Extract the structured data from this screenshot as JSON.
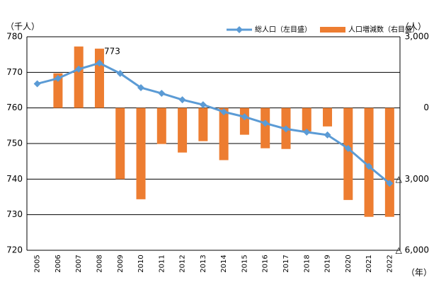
{
  "chart_data": {
    "type": "bar-line",
    "y_label": "（千人）",
    "y2_label": "（人）",
    "x_label": "（年）",
    "categories": [
      "2005",
      "2006",
      "2007",
      "2008",
      "2009",
      "2010",
      "2011",
      "2012",
      "2013",
      "2014",
      "2015",
      "2016",
      "2017",
      "2018",
      "2019",
      "2020",
      "2021",
      "2022"
    ],
    "series": [
      {
        "name": "総人口（左目盛）",
        "type": "line",
        "color": "#5b9bd5",
        "axis": "y",
        "values": [
          766.8,
          768.3,
          770.9,
          772.6,
          769.7,
          765.7,
          764.1,
          762.3,
          760.9,
          758.9,
          757.5,
          755.7,
          754.1,
          753.2,
          752.4,
          748.6,
          743.6,
          738.8
        ],
        "value_labels": [
          null,
          null,
          null,
          "773",
          null,
          null,
          null,
          null,
          null,
          null,
          null,
          null,
          null,
          null,
          null,
          null,
          null,
          null
        ]
      },
      {
        "name": "人口増減数（右目盛）",
        "type": "bar",
        "color": "#ed7d31",
        "axis": "y2",
        "values": [
          null,
          1460,
          2590,
          2500,
          -3000,
          -3850,
          -1520,
          -1880,
          -1400,
          -2200,
          -1130,
          -1700,
          -1730,
          -990,
          -780,
          -3880,
          -4590,
          -4590
        ]
      }
    ],
    "ylim": [
      720,
      780
    ],
    "yticks": [
      720,
      730,
      740,
      750,
      760,
      770,
      780
    ],
    "y2lim": [
      -6000,
      3000
    ],
    "y2ticks": [
      {
        "value": -6000,
        "label": "△ 6,000"
      },
      {
        "value": -3000,
        "label": "△ 3,000"
      },
      0,
      {
        "value": 3000,
        "label": "3,000"
      }
    ],
    "grid": true,
    "legend": "top-right"
  }
}
